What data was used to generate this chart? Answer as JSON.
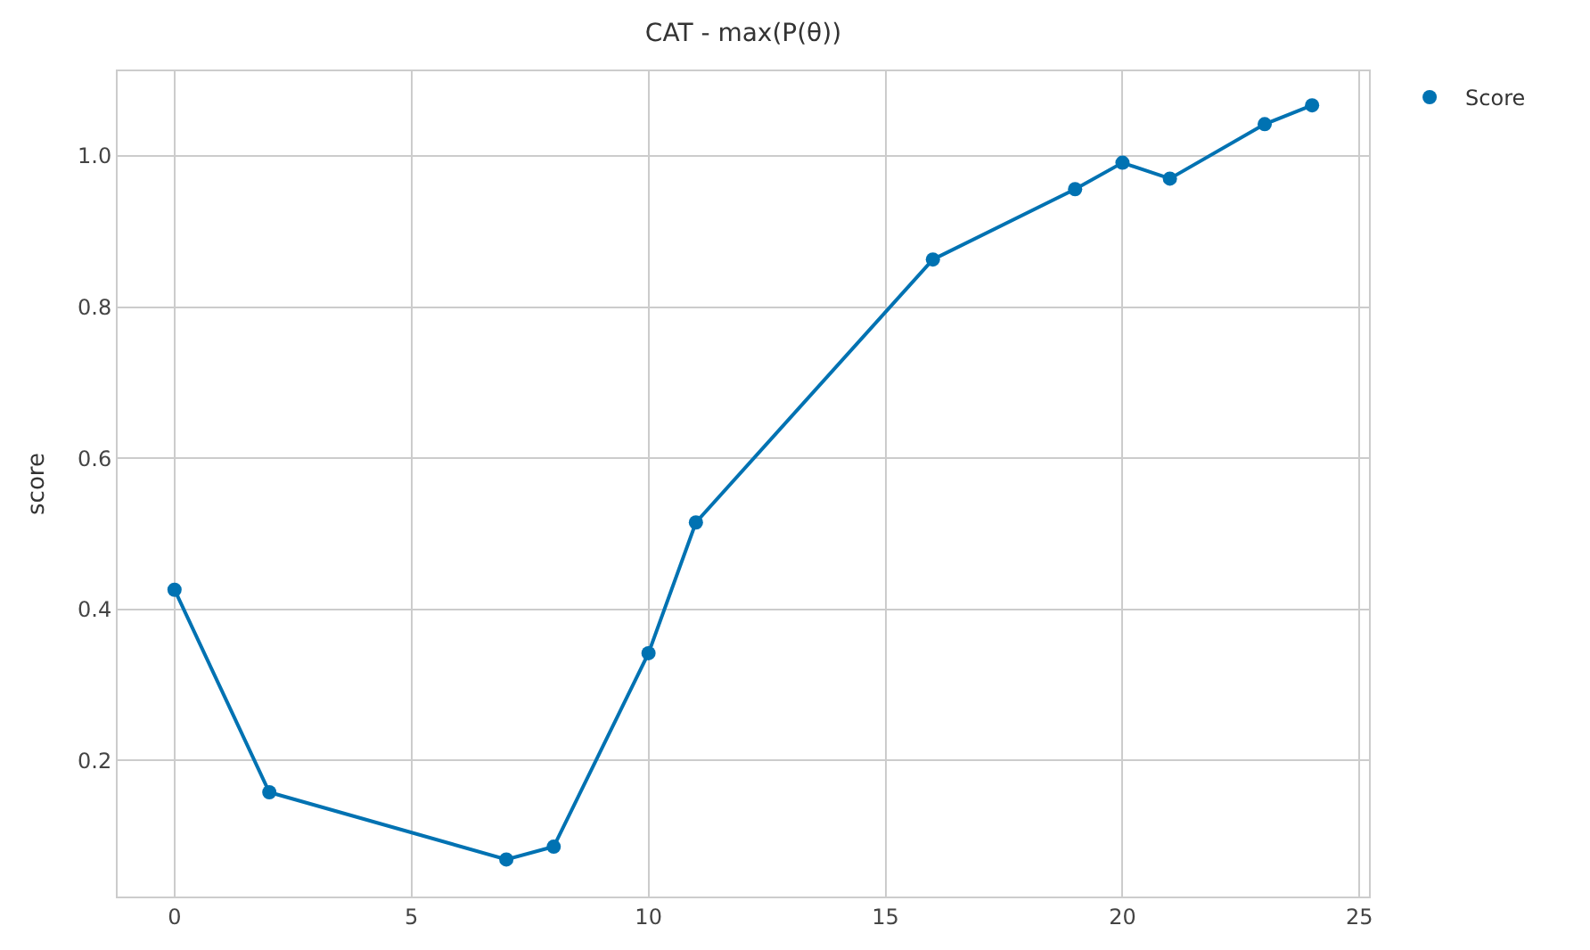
{
  "chart_data": {
    "type": "line",
    "title": "CAT - max(P(θ))",
    "ylabel": "score",
    "x": [
      0,
      2,
      7,
      8,
      10,
      11,
      16,
      19,
      20,
      21,
      23,
      24
    ],
    "series": [
      {
        "name": "Score",
        "color": "#0072b2",
        "values": [
          0.426,
          0.158,
          0.069,
          0.086,
          0.342,
          0.515,
          0.863,
          0.956,
          0.991,
          0.97,
          1.042,
          1.067
        ]
      }
    ],
    "xlim": [
      -1.2,
      25.2
    ],
    "xticks": [
      0,
      5,
      10,
      15,
      20,
      25
    ],
    "ylim": [
      0.02,
      1.112
    ],
    "yticks": [
      {
        "value": 0.2,
        "label": "0.2"
      },
      {
        "value": 0.4,
        "label": "0.4"
      },
      {
        "value": 0.6,
        "label": "0.6"
      },
      {
        "value": 0.8,
        "label": "0.8"
      },
      {
        "value": 1.0,
        "label": "1.0"
      }
    ],
    "grid": true,
    "legend": "top right",
    "marker": "circle",
    "line_style": "solid"
  }
}
